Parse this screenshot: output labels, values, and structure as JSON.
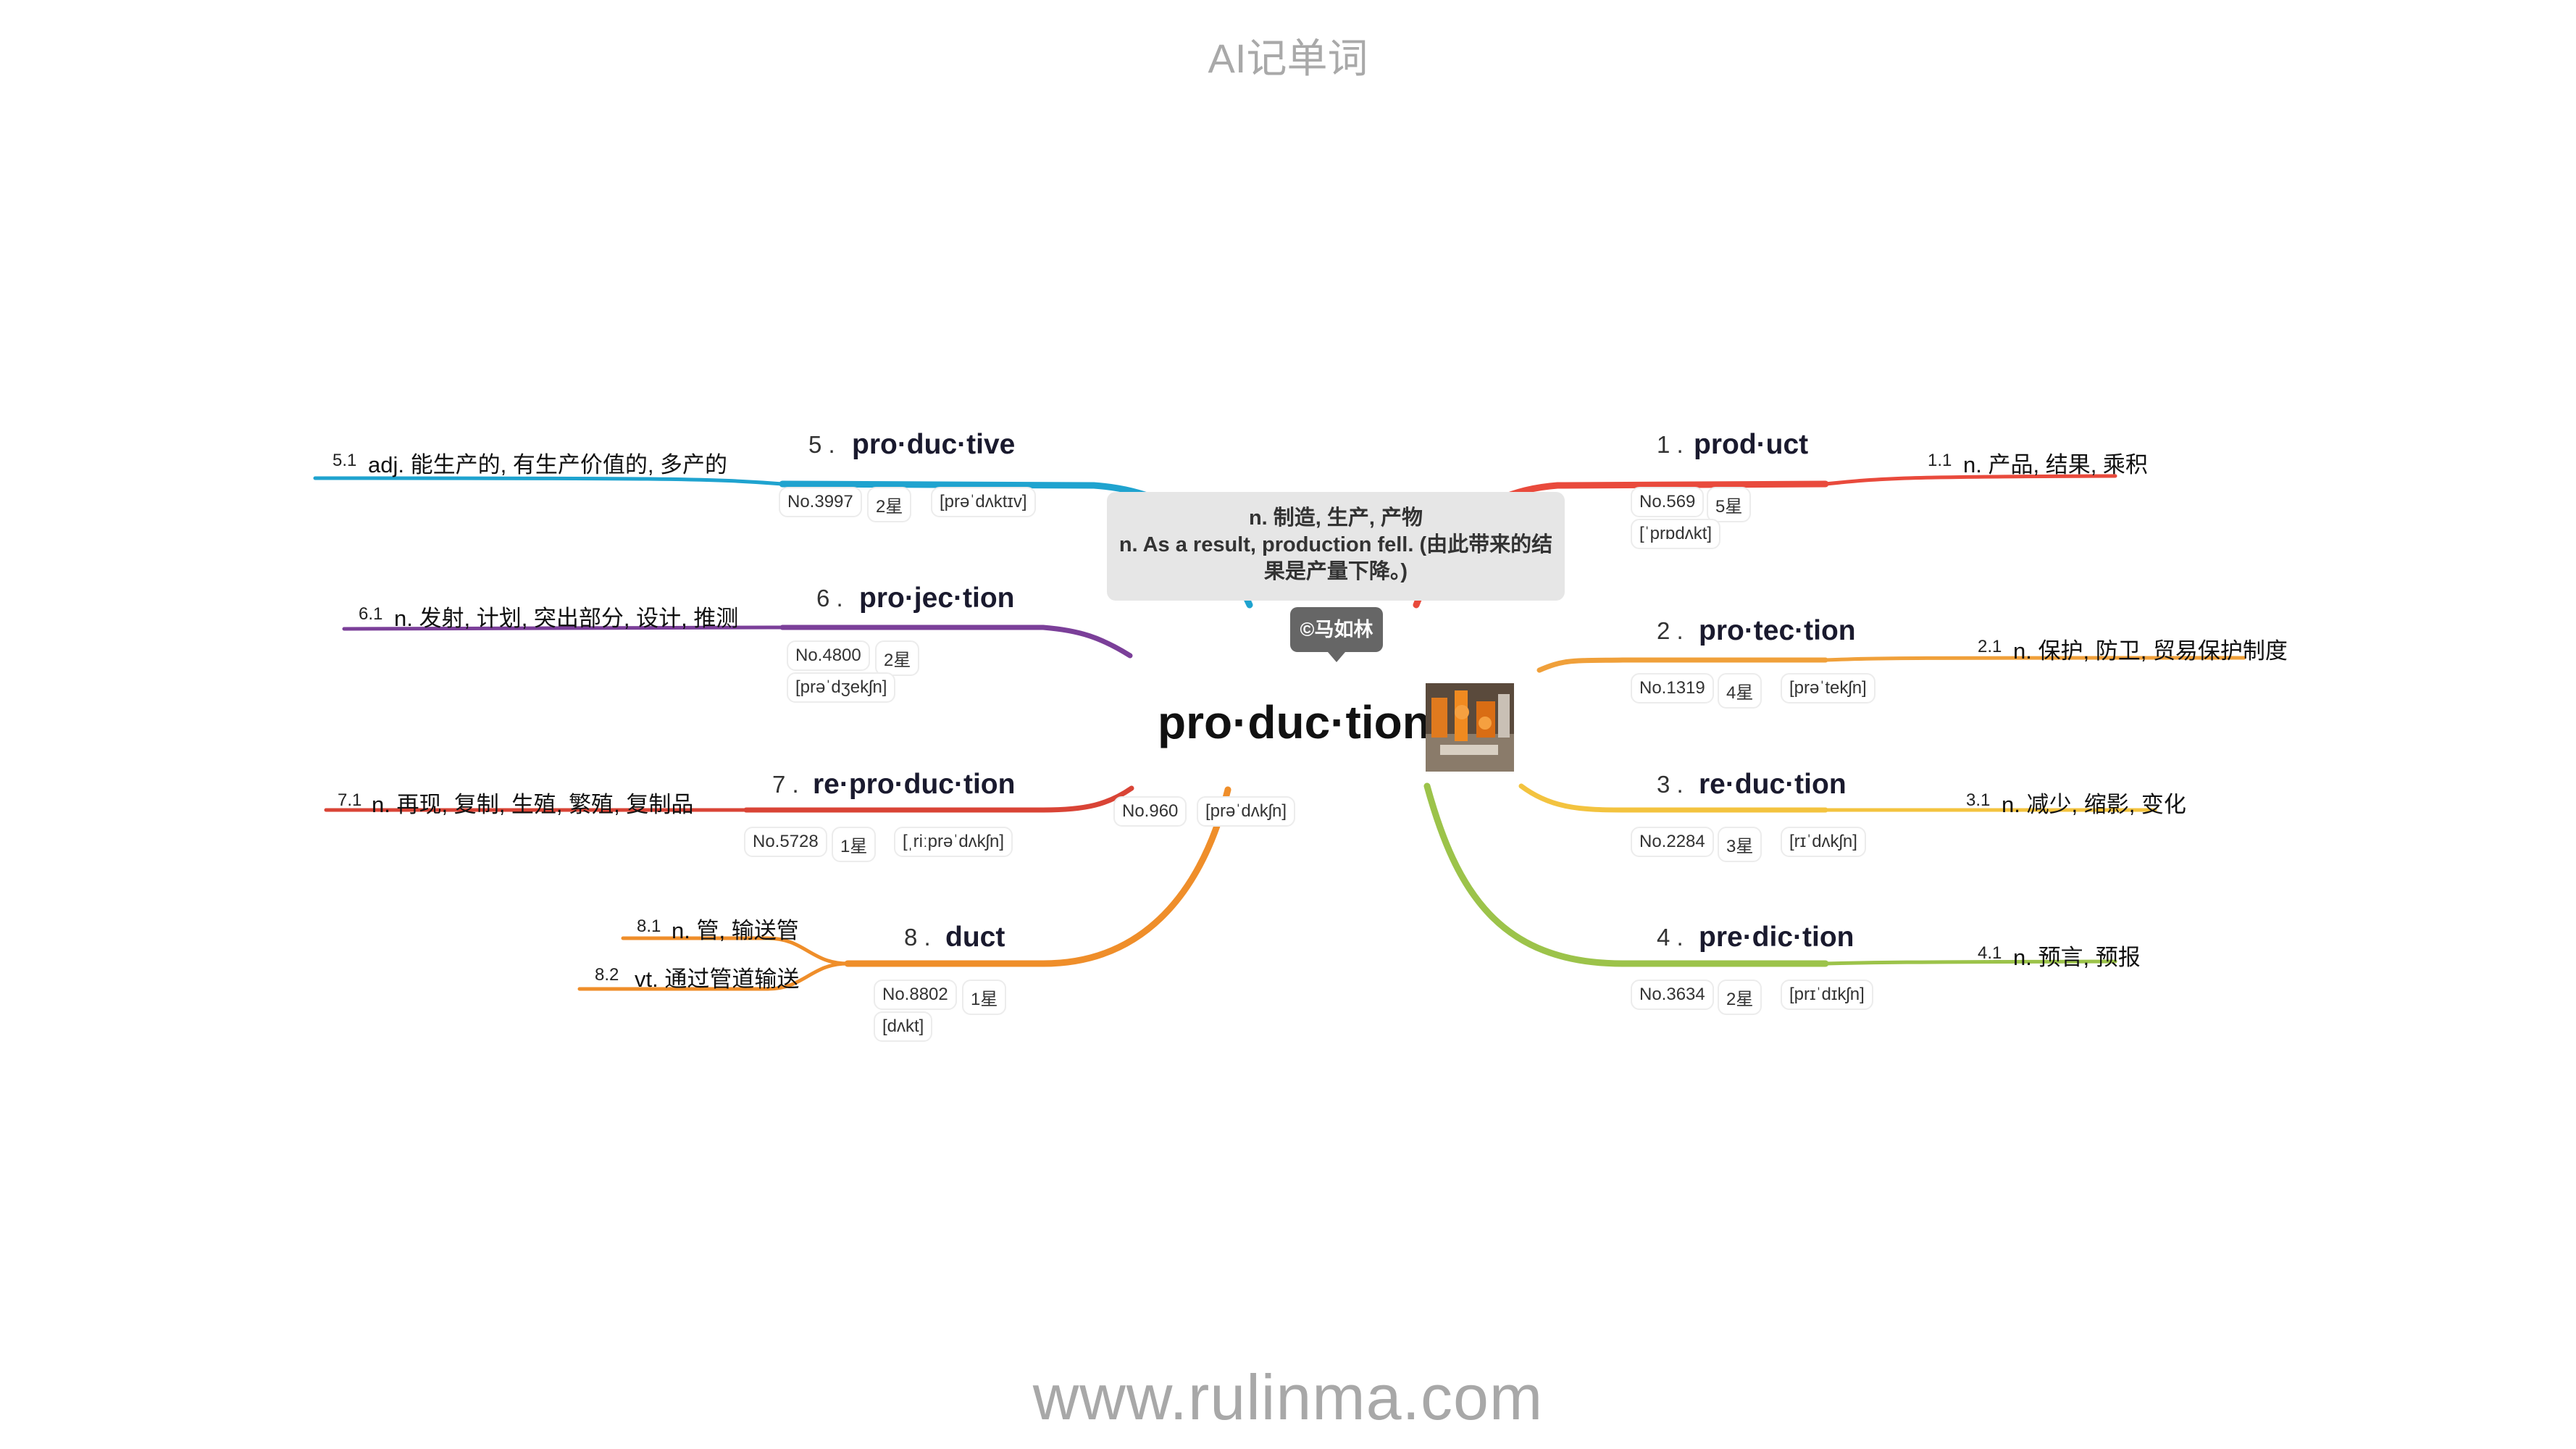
{
  "header": "AI记单词",
  "footer": "www.rulinma.com",
  "center": {
    "word": "pro·duc·tion",
    "no": "No.960",
    "phonetic": "[prəˈdʌkʃn]",
    "note_line1": "n. 制造, 生产, 产物",
    "note_line2": "n. As a result, production fell. (由此带来的结",
    "note_line3": "果是产量下降。)",
    "badge": "©马如林",
    "image_icon": "factory-robot-photo"
  },
  "branches": [
    {
      "num": "1 .",
      "word": "prod·uct",
      "no": "No.569",
      "stars": "5星",
      "phonetic": "[ˈprɒdʌkt]",
      "color": "#e94a3c",
      "senses": [
        {
          "n": "1.1",
          "text": "n. 产品, 结果, 乘积"
        }
      ]
    },
    {
      "num": "2 .",
      "word": "pro·tec·tion",
      "no": "No.1319",
      "stars": "4星",
      "phonetic": "[prəˈtekʃn]",
      "color": "#f0a03a",
      "senses": [
        {
          "n": "2.1",
          "text": "n. 保护, 防卫, 贸易保护制度"
        }
      ]
    },
    {
      "num": "3 .",
      "word": "re·duc·tion",
      "no": "No.2284",
      "stars": "3星",
      "phonetic": "[rɪˈdʌkʃn]",
      "color": "#f3c33f",
      "senses": [
        {
          "n": "3.1",
          "text": "n. 减少, 缩影, 变化"
        }
      ]
    },
    {
      "num": "4 .",
      "word": "pre·dic·tion",
      "no": "No.3634",
      "stars": "2星",
      "phonetic": "[prɪˈdɪkʃn]",
      "color": "#9cc34a",
      "senses": [
        {
          "n": "4.1",
          "text": "n. 预言, 预报"
        }
      ]
    },
    {
      "num": "5 .",
      "word": "pro·duc·tive",
      "no": "No.3997",
      "stars": "2星",
      "phonetic": "[prəˈdʌktɪv]",
      "color": "#1fa3cf",
      "senses": [
        {
          "n": "5.1",
          "text": "adj. 能生产的, 有生产价值的, 多产的"
        }
      ]
    },
    {
      "num": "6 .",
      "word": "pro·jec·tion",
      "no": "No.4800",
      "stars": "2星",
      "phonetic": "[prəˈdʒekʃn]",
      "color": "#7b3f99",
      "senses": [
        {
          "n": "6.1",
          "text": "n. 发射, 计划, 突出部分, 设计, 推测"
        }
      ]
    },
    {
      "num": "7 .",
      "word": "re·pro·duc·tion",
      "no": "No.5728",
      "stars": "1星",
      "phonetic": "[ˌriːprəˈdʌkʃn]",
      "color": "#d94436",
      "senses": [
        {
          "n": "7.1",
          "text": "n. 再现, 复制, 生殖, 繁殖, 复制品"
        }
      ]
    },
    {
      "num": "8 .",
      "word": "duct",
      "no": "No.8802",
      "stars": "1星",
      "phonetic": "[dʌkt]",
      "color": "#ef8e2a",
      "senses": [
        {
          "n": "8.1",
          "text": "n. 管, 输送管"
        },
        {
          "n": "8.2",
          "text": "vt. 通过管道输送"
        }
      ]
    }
  ]
}
